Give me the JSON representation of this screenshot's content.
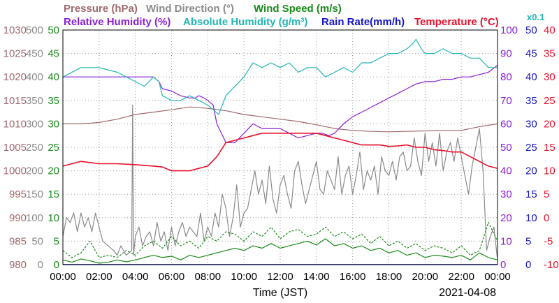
{
  "chart_data": {
    "type": "line",
    "date": "2021-04-08",
    "xlabel": "Time (JST)",
    "x_ticks": [
      "00:00",
      "02:00",
      "04:00",
      "06:00",
      "08:00",
      "10:00",
      "12:00",
      "14:00",
      "16:00",
      "18:00",
      "20:00",
      "22:00",
      "00:00"
    ],
    "legend": {
      "row1": [
        {
          "key": "pressure",
          "text": "Pressure (hPa)",
          "color": "#a0696e"
        },
        {
          "key": "wind_dir",
          "text": "Wind Direction (°)",
          "color": "#8a8a8a"
        },
        {
          "key": "wind_speed",
          "text": "Wind Speed (m/s)",
          "color": "#1a8a1a"
        }
      ],
      "row2": [
        {
          "key": "rh",
          "text": "Relative Humidity (%)",
          "color": "#8c1fd6"
        },
        {
          "key": "ah",
          "text": "Absolute Humidity (g/m³)",
          "color": "#22b5b5"
        },
        {
          "key": "rain",
          "text": "Rain Rate(mm/h)",
          "color": "#1515c8"
        },
        {
          "key": "temp",
          "text": "Temperature (°C)",
          "color": "#e8102c"
        }
      ],
      "multiplier": "x0.1"
    },
    "axes": {
      "pressure": {
        "ticks": [
          "1030",
          "1025",
          "1020",
          "1015",
          "1010",
          "1005",
          "1000",
          "995",
          "990",
          "985",
          "980"
        ],
        "range": [
          980,
          1030
        ],
        "color": "#a0696e"
      },
      "wind_dir": {
        "ticks": [
          "500",
          "450",
          "400",
          "350",
          "300",
          "250",
          "200",
          "150",
          "100",
          "50",
          "0"
        ],
        "range": [
          0,
          500
        ],
        "color": "#8a8a8a"
      },
      "wind_speed": {
        "ticks": [
          "50",
          "45",
          "40",
          "35",
          "30",
          "25",
          "20",
          "15",
          "10",
          "5",
          "0"
        ],
        "range": [
          0,
          50
        ],
        "color": "#1a8a1a"
      },
      "rh": {
        "ticks": [
          "100",
          "90",
          "80",
          "70",
          "60",
          "50",
          "40",
          "30",
          "20",
          "10",
          "0"
        ],
        "range": [
          0,
          100
        ],
        "color": "#8c1fd6"
      },
      "rain": {
        "ticks": [
          "50",
          "45",
          "40",
          "35",
          "30",
          "25",
          "20",
          "15",
          "10",
          "5",
          "0"
        ],
        "range": [
          0,
          50
        ],
        "color": "#1515c8"
      },
      "temp": {
        "ticks": [
          "40",
          "35",
          "30",
          "25",
          "20",
          "15",
          "10",
          "5",
          "0",
          "-5",
          "-10"
        ],
        "range": [
          -10,
          40
        ],
        "color": "#e8102c"
      }
    },
    "series": [
      {
        "name": "Pressure (hPa)",
        "key": "pressure",
        "axis": "pressure",
        "color": "#a0696e",
        "x": [
          0,
          1,
          2,
          3,
          4,
          5,
          6,
          7,
          8,
          9,
          10,
          11,
          12,
          13,
          14,
          15,
          16,
          17,
          18,
          19,
          20,
          21,
          22,
          23,
          24
        ],
        "y": [
          1010,
          1010,
          1010.3,
          1011,
          1012,
          1012.5,
          1013,
          1013.6,
          1013.3,
          1012.8,
          1012,
          1011.5,
          1011,
          1010.5,
          1009.8,
          1009,
          1008.6,
          1008.4,
          1008.3,
          1008.4,
          1008.5,
          1008.6,
          1008.6,
          1009.4,
          1010
        ]
      },
      {
        "name": "Wind Direction (°)",
        "key": "wind_dir",
        "axis": "wind_dir",
        "color": "#8a8a8a",
        "x": [
          0,
          0.2,
          0.4,
          0.6,
          0.8,
          1,
          1.2,
          1.4,
          1.6,
          1.8,
          2,
          2.2,
          2.5,
          2.8,
          3,
          3.2,
          3.5,
          3.8,
          3.85,
          3.9,
          4,
          4.2,
          4.4,
          4.6,
          4.8,
          5,
          5.2,
          5.4,
          5.6,
          5.8,
          6,
          6.2,
          6.4,
          6.6,
          6.8,
          7,
          7.2,
          7.4,
          7.6,
          7.8,
          8,
          8.2,
          8.4,
          8.6,
          8.8,
          9,
          9.2,
          9.4,
          9.6,
          9.8,
          10,
          10.2,
          10.4,
          10.6,
          10.8,
          11,
          11.2,
          11.4,
          11.6,
          11.8,
          12,
          12.2,
          12.4,
          12.6,
          12.8,
          13,
          13.2,
          13.4,
          13.6,
          13.8,
          14,
          14.2,
          14.4,
          14.6,
          14.8,
          15,
          15.2,
          15.4,
          15.6,
          15.8,
          16,
          16.2,
          16.4,
          16.6,
          16.8,
          17,
          17.2,
          17.4,
          17.6,
          17.8,
          18,
          18.2,
          18.4,
          18.6,
          18.8,
          19,
          19.2,
          19.4,
          19.6,
          19.8,
          20,
          20.2,
          20.4,
          20.6,
          20.8,
          21,
          21.2,
          21.4,
          21.6,
          21.8,
          22,
          22.2,
          22.4,
          22.6,
          22.8,
          23,
          23.2,
          23.4,
          23.6,
          23.8,
          24
        ],
        "y": [
          60,
          100,
          90,
          110,
          70,
          110,
          80,
          100,
          70,
          110,
          80,
          50,
          40,
          30,
          20,
          40,
          20,
          30,
          340,
          20,
          60,
          80,
          40,
          60,
          70,
          40,
          90,
          50,
          70,
          30,
          80,
          40,
          70,
          90,
          60,
          80,
          70,
          60,
          110,
          50,
          80,
          60,
          110,
          80,
          150,
          120,
          60,
          100,
          170,
          80,
          110,
          120,
          160,
          200,
          150,
          180,
          130,
          210,
          140,
          110,
          170,
          190,
          150,
          120,
          200,
          220,
          170,
          130,
          160,
          190,
          220,
          160,
          150,
          200,
          180,
          160,
          230,
          150,
          190,
          210,
          150,
          190,
          240,
          160,
          200,
          180,
          210,
          150,
          230,
          200,
          190,
          220,
          180,
          230,
          240,
          200,
          210,
          270,
          220,
          190,
          280,
          220,
          260,
          210,
          280,
          200,
          240,
          260,
          220,
          270,
          230,
          190,
          150,
          210,
          250,
          290,
          200,
          30,
          60,
          80,
          10
        ]
      },
      {
        "name": "Wind Speed (m/s) avg",
        "key": "wind_speed",
        "axis": "wind_speed",
        "color": "#1a8a1a",
        "x": [
          0,
          0.5,
          1,
          1.5,
          2,
          2.5,
          3,
          3.5,
          4,
          4.5,
          5,
          5.5,
          6,
          6.5,
          7,
          7.5,
          8,
          8.5,
          9,
          9.5,
          10,
          10.5,
          11,
          11.5,
          12,
          12.5,
          13,
          13.5,
          14,
          14.5,
          15,
          15.5,
          16,
          16.5,
          17,
          17.5,
          18,
          18.5,
          19,
          19.5,
          20,
          20.5,
          21,
          21.5,
          22,
          22.5,
          23,
          23.5,
          24
        ],
        "y": [
          1,
          0.5,
          1.2,
          0.8,
          0.3,
          0.5,
          1,
          0.6,
          1,
          1.5,
          2,
          1.5,
          1.8,
          1,
          2,
          1.5,
          2,
          2.5,
          3,
          3.5,
          3,
          4,
          3.5,
          4.5,
          3.5,
          4,
          4.5,
          5,
          4.2,
          5.5,
          4,
          4.5,
          3.5,
          4,
          3,
          3.5,
          2.5,
          3,
          2,
          2.5,
          1.5,
          2,
          1.8,
          1.5,
          2,
          1,
          2.5,
          1.5,
          1
        ]
      },
      {
        "name": "Wind Speed (m/s) gust",
        "key": "wind_speed_gust",
        "axis": "wind_speed",
        "color": "#1a8a1a",
        "dashed": true,
        "x": [
          0,
          0.5,
          1,
          1.5,
          2,
          2.5,
          3,
          3.5,
          4,
          4.5,
          5,
          5.5,
          6,
          6.5,
          7,
          7.5,
          8,
          8.5,
          9,
          9.5,
          10,
          10.5,
          11,
          11.5,
          12,
          12.5,
          13,
          13.5,
          14,
          14.5,
          15,
          15.5,
          16,
          16.5,
          17,
          17.5,
          18,
          18.5,
          19,
          19.5,
          20,
          20.5,
          21,
          21.5,
          22,
          22.5,
          23,
          23.5,
          24
        ],
        "y": [
          3,
          1.5,
          2.5,
          5,
          1.5,
          2,
          1.5,
          3,
          2,
          4,
          5,
          3.5,
          6,
          4,
          5,
          3.5,
          6,
          5,
          7,
          6.5,
          5,
          7,
          6,
          8,
          5.5,
          7,
          7.5,
          6,
          6.5,
          8,
          6,
          7,
          5.5,
          6.5,
          4.5,
          6,
          4,
          5,
          3.5,
          4.5,
          3,
          4,
          3.5,
          2.5,
          4,
          2,
          3,
          9,
          5
        ]
      },
      {
        "name": "Relative Humidity (%)",
        "key": "rh",
        "axis": "rh",
        "color": "#8c1fd6",
        "x": [
          0,
          1,
          2,
          3,
          4,
          5,
          5.3,
          5.5,
          6,
          6.5,
          7,
          7.3,
          7.5,
          7.8,
          8,
          8.3,
          8.5,
          9,
          9.5,
          10,
          10.5,
          11,
          11.5,
          12,
          12.5,
          13,
          13.5,
          14,
          14.3,
          14.7,
          15,
          15.5,
          16,
          16.5,
          17,
          17.5,
          18,
          18.5,
          19,
          19.5,
          20,
          20.5,
          21,
          21.5,
          22,
          22.5,
          23,
          23.5,
          24
        ],
        "y": [
          80,
          80,
          80,
          80,
          80,
          80,
          78,
          75,
          74,
          72,
          71,
          71,
          72,
          71,
          70,
          68,
          60,
          52,
          52,
          56,
          60,
          58,
          58,
          58,
          56,
          54,
          55,
          56,
          56,
          55,
          56,
          60,
          63,
          65,
          67,
          69,
          71,
          73,
          75,
          77,
          78,
          78,
          79,
          79,
          80,
          80,
          81,
          82,
          85
        ]
      },
      {
        "name": "Absolute Humidity (g/m³)",
        "key": "ah",
        "axis": "wind_speed",
        "color": "#22b5b5",
        "x": [
          0,
          1,
          2,
          3,
          3.5,
          4,
          4.5,
          5,
          5.3,
          5.5,
          6,
          6.5,
          7,
          7.5,
          8,
          8.3,
          8.6,
          9,
          9.5,
          10,
          10.5,
          11,
          11.5,
          12,
          12.5,
          13,
          13.5,
          14,
          14.5,
          15,
          15.5,
          16,
          16.5,
          17,
          17.5,
          18,
          18.5,
          19,
          19.3,
          19.5,
          19.8,
          20,
          20.5,
          21,
          21.5,
          22,
          22.5,
          23,
          23.5,
          24
        ],
        "y": [
          40,
          42,
          42,
          41,
          40,
          39,
          38,
          40,
          39,
          36,
          35,
          35,
          36,
          35,
          34,
          33,
          32,
          36,
          38,
          40,
          43,
          42,
          43,
          42,
          43,
          41,
          42,
          42,
          40,
          41,
          42,
          41,
          43,
          43,
          44,
          45,
          45,
          46,
          47,
          48,
          46,
          45,
          45,
          46,
          45,
          45,
          44,
          44,
          42,
          42
        ]
      },
      {
        "name": "Temperature (°C)",
        "key": "temp",
        "axis": "temp",
        "color": "#e8102c",
        "x": [
          0,
          1,
          2,
          3,
          4,
          5,
          5.5,
          6,
          6.5,
          7,
          7.5,
          8,
          8.5,
          9,
          9.5,
          10,
          10.5,
          11,
          11.5,
          12,
          12.5,
          13,
          13.5,
          14,
          14.5,
          15,
          15.5,
          16,
          16.5,
          17,
          17.5,
          18,
          18.5,
          19,
          19.5,
          20,
          20.5,
          21,
          21.5,
          22,
          22.5,
          23,
          23.5,
          24
        ],
        "y": [
          11,
          12,
          11.5,
          11.5,
          11.3,
          11,
          10.8,
          10,
          10,
          10,
          10.5,
          11,
          13,
          16,
          16.5,
          17,
          17.5,
          18,
          18,
          18,
          18,
          18,
          18,
          18,
          17.5,
          17,
          16.5,
          16,
          15.5,
          15.5,
          15.5,
          15.2,
          15.3,
          15.5,
          15,
          15,
          14.5,
          14.3,
          14,
          14,
          13,
          12,
          11,
          10.5
        ]
      },
      {
        "name": "Rain Rate(mm/h)",
        "key": "rain",
        "axis": "rain",
        "color": "#1515c8",
        "x": [
          0,
          24
        ],
        "y": [
          0,
          0
        ]
      }
    ]
  }
}
